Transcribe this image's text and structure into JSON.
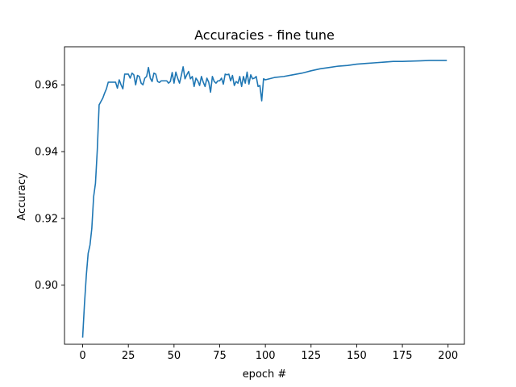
{
  "chart_data": {
    "type": "line",
    "title": "Accuracies - fine tune",
    "xlabel": "epoch #",
    "ylabel": "Accuracy",
    "xlim": [
      -9.95,
      208.95
    ],
    "ylim": [
      0.8823,
      0.9714
    ],
    "xticks": [
      0,
      25,
      50,
      75,
      100,
      125,
      150,
      175,
      200
    ],
    "xtick_labels": [
      "0",
      "25",
      "50",
      "75",
      "100",
      "125",
      "150",
      "175",
      "200"
    ],
    "yticks": [
      0.9,
      0.92,
      0.94,
      0.96
    ],
    "ytick_labels": [
      "0.90",
      "0.92",
      "0.94",
      "0.96"
    ],
    "grid": false,
    "line_color": "#1f77b4",
    "series": [
      {
        "x": [
          0,
          1,
          2,
          3,
          4,
          5,
          6,
          7,
          8,
          9,
          10,
          11,
          12,
          13,
          14,
          15,
          16,
          17,
          18,
          19,
          20,
          21,
          22,
          23,
          24,
          25,
          26,
          27,
          28,
          29,
          30,
          31,
          32,
          33,
          34,
          35,
          36,
          37,
          38,
          39,
          40,
          41,
          42,
          43,
          44,
          45,
          46,
          47,
          48,
          49,
          50,
          51,
          52,
          53,
          54,
          55,
          56,
          57,
          58,
          59,
          60,
          61,
          62,
          63,
          64,
          65,
          66,
          67,
          68,
          69,
          70,
          71,
          72,
          73,
          74,
          75,
          76,
          77,
          78,
          79,
          80,
          81,
          82,
          83,
          84,
          85,
          86,
          87,
          88,
          89,
          90,
          91,
          92,
          93,
          94,
          95,
          96,
          97,
          98,
          99,
          100,
          105,
          110,
          115,
          120,
          125,
          130,
          135,
          140,
          145,
          150,
          155,
          160,
          165,
          170,
          175,
          180,
          185,
          190,
          195,
          199
        ],
        "y": [
          0.8845,
          0.8945,
          0.903,
          0.9095,
          0.912,
          0.917,
          0.9265,
          0.9305,
          0.9405,
          0.954,
          0.955,
          0.956,
          0.9575,
          0.9588,
          0.9608,
          0.9608,
          0.9608,
          0.9608,
          0.9608,
          0.959,
          0.9615,
          0.96,
          0.9588,
          0.9632,
          0.9632,
          0.9632,
          0.962,
          0.9635,
          0.963,
          0.96,
          0.9628,
          0.9625,
          0.9605,
          0.96,
          0.962,
          0.9625,
          0.9652,
          0.962,
          0.961,
          0.9635,
          0.9632,
          0.961,
          0.9607,
          0.9612,
          0.9612,
          0.9612,
          0.9612,
          0.9605,
          0.961,
          0.9637,
          0.9605,
          0.9638,
          0.962,
          0.9605,
          0.9628,
          0.9654,
          0.9618,
          0.963,
          0.964,
          0.9618,
          0.9625,
          0.9595,
          0.962,
          0.9612,
          0.9598,
          0.9625,
          0.9608,
          0.9595,
          0.962,
          0.9608,
          0.9578,
          0.9625,
          0.961,
          0.9605,
          0.9612,
          0.9612,
          0.962,
          0.9602,
          0.9632,
          0.963,
          0.9632,
          0.9612,
          0.9628,
          0.9598,
          0.961,
          0.9605,
          0.9625,
          0.9595,
          0.9625,
          0.9605,
          0.9638,
          0.9602,
          0.963,
          0.9618,
          0.962,
          0.9625,
          0.9595,
          0.9598,
          0.9552,
          0.9618,
          0.9615,
          0.9622,
          0.9625,
          0.963,
          0.9635,
          0.9642,
          0.9648,
          0.9652,
          0.9656,
          0.9658,
          0.9662,
          0.9664,
          0.9666,
          0.9668,
          0.967,
          0.967,
          0.9671,
          0.9672,
          0.9673,
          0.9673,
          0.9673
        ]
      }
    ]
  }
}
